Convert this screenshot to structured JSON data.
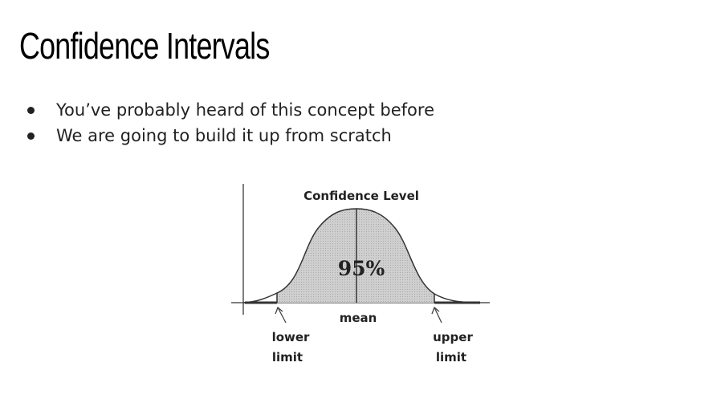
{
  "slide": {
    "title": "Confidence Intervals",
    "bullets": [
      "You’ve probably heard of this concept before",
      "We are going to build it up from scratch"
    ]
  },
  "diagram": {
    "heading": "Confidence Level",
    "percent_label": "95%",
    "mean_label": "mean",
    "lower_label_line1": "lower",
    "lower_label_line2": "limit",
    "upper_label_line1": "upper",
    "upper_label_line2": "limit",
    "shade_color": "#c8c8c8",
    "line_color": "#333333"
  }
}
